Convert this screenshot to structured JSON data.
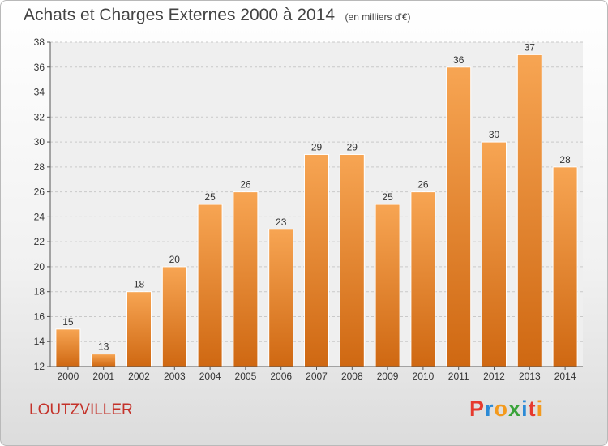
{
  "chart_data": {
    "type": "bar",
    "title": "Achats et Charges Externes 2000 à 2014",
    "subtitle": "(en milliers d'€)",
    "categories": [
      "2000",
      "2001",
      "2002",
      "2003",
      "2004",
      "2005",
      "2006",
      "2007",
      "2008",
      "2009",
      "2010",
      "2011",
      "2012",
      "2013",
      "2014"
    ],
    "values": [
      15,
      13,
      18,
      20,
      25,
      26,
      23,
      29,
      29,
      25,
      26,
      36,
      30,
      37,
      28
    ],
    "xlabel": "",
    "ylabel": "",
    "ylim": [
      12,
      38
    ],
    "yticks": [
      12,
      14,
      16,
      18,
      20,
      22,
      24,
      26,
      28,
      30,
      32,
      34,
      36,
      38
    ],
    "grid": true,
    "bar_color": "#f0913b"
  },
  "footer": {
    "commune": "LOUTZVILLER",
    "brand": "Proxiti"
  },
  "colors": {
    "commune_text": "#c4322a",
    "brand_letters": [
      "#e63a2e",
      "#2b8ad6",
      "#f39a1e",
      "#3aa33a",
      "#2b8ad6",
      "#e63a2e",
      "#f39a1e"
    ]
  }
}
